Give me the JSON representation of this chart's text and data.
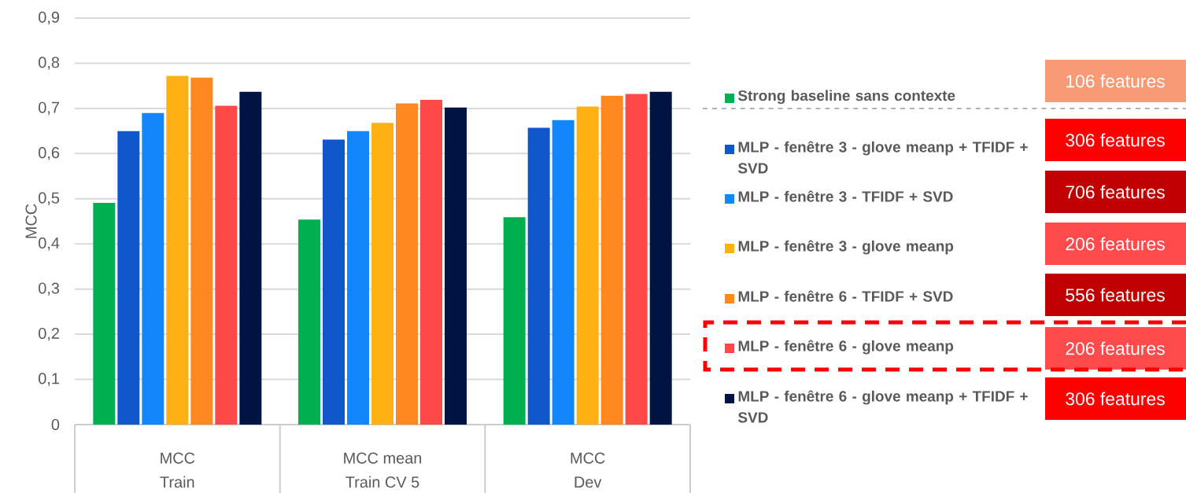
{
  "chart_data": {
    "type": "bar",
    "ylabel": "MCC",
    "categories": [
      "MCC",
      "MCC mean",
      "MCC"
    ],
    "series": [
      {
        "name": "Strong baseline sans contexte",
        "color": "#00b050",
        "values": [
          0.491,
          0.454,
          0.459
        ]
      },
      {
        "name": "MLP - fenêtre 3 - glove meanp + TFIDF + SVD",
        "color": "#1157cc",
        "values": [
          0.65,
          0.631,
          0.657
        ]
      },
      {
        "name": "MLP - fenêtre 3 - TFIDF + SVD",
        "color": "#1287fc",
        "values": [
          0.69,
          0.65,
          0.674
        ]
      },
      {
        "name": "MLP - fenêtre 3 - glove meanp",
        "color": "#ffb013",
        "values": [
          0.772,
          0.668,
          0.704
        ]
      },
      {
        "name": "MLP - fenêtre 6 - TFIDF + SVD",
        "color": "#ff8820",
        "values": [
          0.768,
          0.711,
          0.728
        ]
      },
      {
        "name": "MLP - fenêtre 6 - glove meanp",
        "color": "#ff4848",
        "values": [
          0.706,
          0.719,
          0.732
        ]
      },
      {
        "name": "MLP - fenêtre 6 - glove meanp + TFIDF + SVD",
        "color": "#001444",
        "values": [
          0.737,
          0.702,
          0.737
        ]
      }
    ],
    "ylim": [
      0,
      0.9
    ],
    "yticks": [
      0,
      {
        "value": 0.1,
        "label": "0,1"
      },
      {
        "value": 0.2,
        "label": "0,2"
      },
      {
        "value": 0.3,
        "label": "0,3"
      },
      {
        "value": 0.4,
        "label": "0,4"
      },
      {
        "value": 0.5,
        "label": "0,5"
      },
      {
        "value": 0.6,
        "label": "0,6"
      },
      {
        "value": 0.7,
        "label": "0,7"
      },
      {
        "value": 0.8,
        "label": "0,8"
      },
      {
        "value": 0.9,
        "label": "0,9"
      }
    ],
    "grid": "y",
    "legend": "right",
    "annotations": [
      "Train",
      "Train CV 5",
      "Dev",
      "106 features",
      "306 features",
      "706 features",
      "206 features",
      "556 features",
      "206 features",
      "306 features"
    ]
  }
}
